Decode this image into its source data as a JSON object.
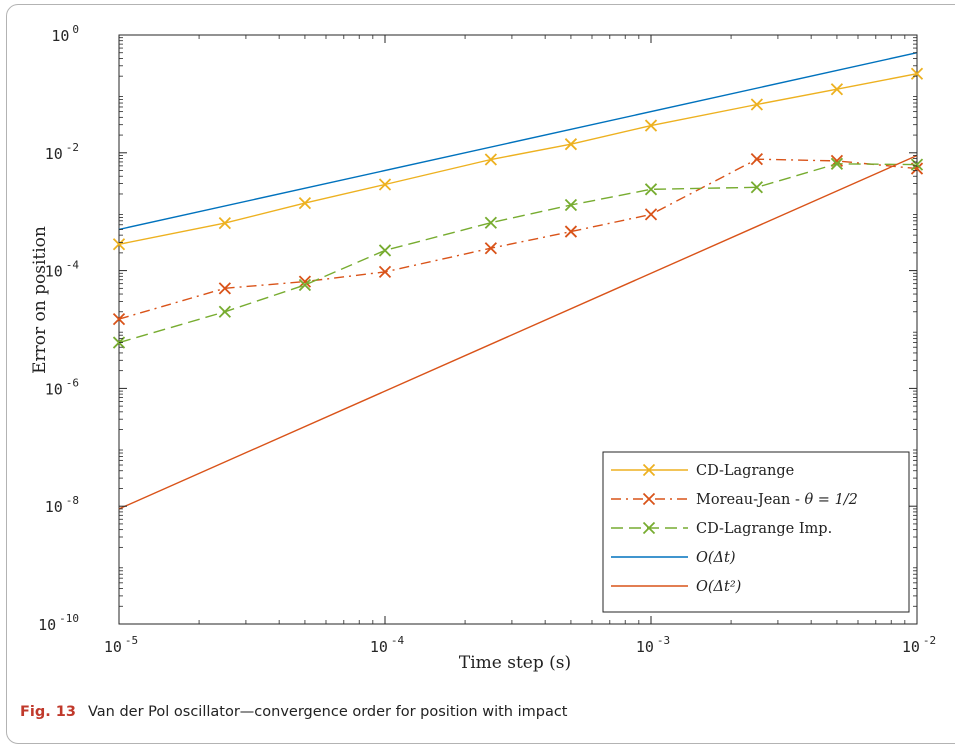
{
  "caption": {
    "label": "Fig. 13",
    "text": "Van der Pol oscillator—convergence order for position with impact"
  },
  "chart_data": {
    "type": "line",
    "xscale": "log",
    "yscale": "log",
    "xlabel": "Time step (s)",
    "ylabel": "Error on position",
    "xlim": [
      1e-05,
      0.01
    ],
    "ylim": [
      1e-10,
      1
    ],
    "x_ticks": [
      {
        "value": 1e-05,
        "base": "10",
        "exp": "-5"
      },
      {
        "value": 0.0001,
        "base": "10",
        "exp": "-4"
      },
      {
        "value": 0.001,
        "base": "10",
        "exp": "-3"
      },
      {
        "value": 0.01,
        "base": "10",
        "exp": "-2"
      }
    ],
    "y_ticks": [
      {
        "value": 1e-10,
        "base": "10",
        "exp": "-10"
      },
      {
        "value": 1e-08,
        "base": "10",
        "exp": "-8"
      },
      {
        "value": 1e-06,
        "base": "10",
        "exp": "-6"
      },
      {
        "value": 0.0001,
        "base": "10",
        "exp": "-4"
      },
      {
        "value": 0.01,
        "base": "10",
        "exp": "-2"
      },
      {
        "value": 1,
        "base": "10",
        "exp": "0"
      }
    ],
    "grid": false,
    "legend_position": "bottom-right",
    "series": [
      {
        "name": "CD-Lagrange",
        "color": "#EDB120",
        "style": "solid",
        "marker": "x",
        "points": [
          [
            1e-05,
            0.00028
          ],
          [
            2.5e-05,
            0.00064
          ],
          [
            5e-05,
            0.0014
          ],
          [
            0.0001,
            0.0029
          ],
          [
            0.00025,
            0.0077
          ],
          [
            0.0005,
            0.014
          ],
          [
            0.001,
            0.029
          ],
          [
            0.0025,
            0.066
          ],
          [
            0.005,
            0.12
          ],
          [
            0.01,
            0.22
          ]
        ]
      },
      {
        "name": "Moreau-Jean - θ = 1/2",
        "color": "#D95319",
        "style": "dashdot",
        "marker": "x",
        "points": [
          [
            1e-05,
            1.5e-05
          ],
          [
            2.5e-05,
            5e-05
          ],
          [
            5e-05,
            6.5e-05
          ],
          [
            0.0001,
            9.5e-05
          ],
          [
            0.00025,
            0.00024
          ],
          [
            0.0005,
            0.00046
          ],
          [
            0.001,
            0.0009
          ],
          [
            0.0025,
            0.0078
          ],
          [
            0.005,
            0.0073
          ],
          [
            0.01,
            0.0054
          ]
        ]
      },
      {
        "name": "CD-Lagrange Imp.",
        "color": "#77AC30",
        "style": "dashed",
        "marker": "x",
        "points": [
          [
            1e-05,
            6e-06
          ],
          [
            2.5e-05,
            2e-05
          ],
          [
            5e-05,
            5.7e-05
          ],
          [
            0.0001,
            0.00022
          ],
          [
            0.00025,
            0.00065
          ],
          [
            0.0005,
            0.0013
          ],
          [
            0.001,
            0.0024
          ],
          [
            0.0025,
            0.0026
          ],
          [
            0.005,
            0.0065
          ],
          [
            0.01,
            0.0063
          ]
        ]
      },
      {
        "name": "O(Δt)",
        "color": "#0072BD",
        "style": "solid",
        "marker": "none",
        "points": [
          [
            1e-05,
            0.0005
          ],
          [
            0.01,
            0.5
          ]
        ]
      },
      {
        "name": "O(Δt²)",
        "color": "#D95319",
        "style": "solid",
        "marker": "none",
        "points": [
          [
            1e-05,
            9e-09
          ],
          [
            0.01,
            0.009
          ]
        ]
      }
    ],
    "legend": [
      {
        "prefix": "CD-Lagrange",
        "math": "",
        "suffix": ""
      },
      {
        "prefix": "Moreau-Jean - ",
        "math": "θ = 1/2",
        "suffix": ""
      },
      {
        "prefix": "CD-Lagrange Imp.",
        "math": "",
        "suffix": ""
      },
      {
        "prefix": "",
        "math": "O(Δt)",
        "suffix": ""
      },
      {
        "prefix": "",
        "math": "O(Δt²)",
        "suffix": ""
      }
    ]
  }
}
